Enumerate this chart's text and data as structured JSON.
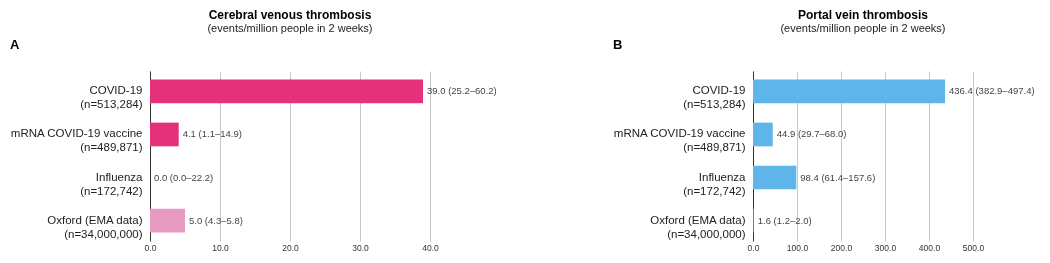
{
  "chart_data": [
    {
      "type": "bar",
      "orientation": "horizontal",
      "title": "Cerebral venous thrombosis",
      "subtitle": "(events/million people in 2 weeks)",
      "annotations": [
        "A"
      ],
      "categories": [
        "COVID-19\n(n=513,284)",
        "mRNA COVID-19 vaccine\n(n=489,871)",
        "Influenza\n(n=172,742)",
        "Oxford (EMA data)\n(n=34,000,000)"
      ],
      "values": [
        39.0,
        4.1,
        0.0,
        5.0
      ],
      "value_labels": [
        "39.0 (25.2–60.2)",
        "4.1 (1.1–14.9)",
        "0.0 (0.0–22.2)",
        "5.0 (4.3–5.8)"
      ],
      "colors": [
        "#e5307a",
        "#e5307a",
        "#e5307a",
        "#e89ac0"
      ],
      "xlim": [
        0,
        40
      ],
      "xticks": [
        {
          "value": 0,
          "label": "0.0"
        },
        {
          "value": 10,
          "label": "10.0"
        },
        {
          "value": 20,
          "label": "20.0"
        },
        {
          "value": 30,
          "label": "30.0"
        },
        {
          "value": 40,
          "label": "40.0"
        }
      ],
      "grid": "x"
    },
    {
      "type": "bar",
      "orientation": "horizontal",
      "title": "Portal vein thrombosis",
      "subtitle": "(events/million people in 2 weeks)",
      "annotations": [
        "B"
      ],
      "categories": [
        "COVID-19\n(n=513,284)",
        "mRNA COVID-19 vaccine\n(n=489,871)",
        "Influenza\n(n=172,742)",
        "Oxford (EMA data)\n(n=34,000,000)"
      ],
      "values": [
        436.4,
        44.9,
        98.4,
        1.6
      ],
      "value_labels": [
        "436.4 (382.9–497.4)",
        "44.9 (29.7–68.0)",
        "98.4 (61.4–157.6)",
        "1.6 (1.2–2.0)"
      ],
      "colors": [
        "#5db5ea",
        "#5db5ea",
        "#5db5ea",
        "#5db5ea"
      ],
      "xlim": [
        0,
        500
      ],
      "xticks": [
        {
          "value": 0,
          "label": "0.0"
        },
        {
          "value": 100,
          "label": "100.0"
        },
        {
          "value": 200,
          "label": "200.0"
        },
        {
          "value": 300,
          "label": "300.0"
        },
        {
          "value": 400,
          "label": "400.0"
        },
        {
          "value": 500,
          "label": "500.0"
        }
      ],
      "grid": "x"
    }
  ]
}
